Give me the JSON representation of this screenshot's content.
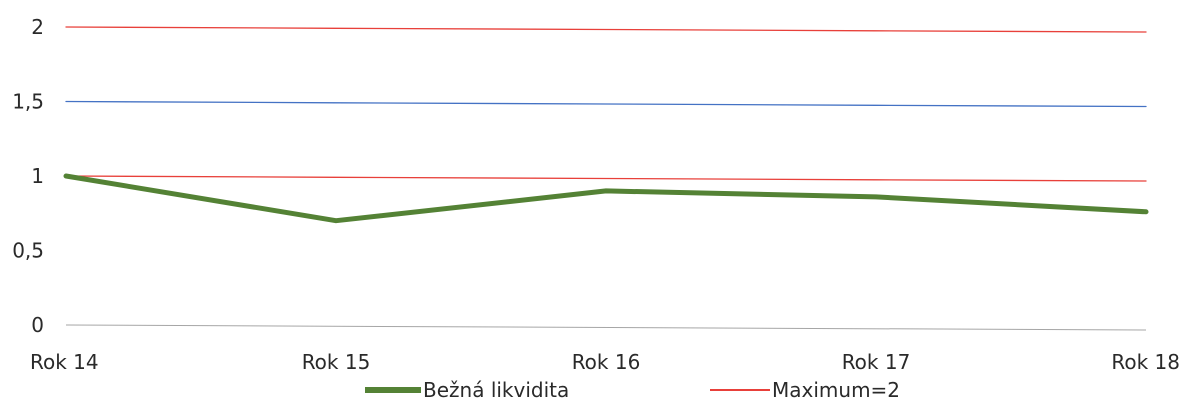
{
  "chart_data": {
    "type": "line",
    "categories": [
      "Rok 14",
      "Rok 15",
      "Rok 16",
      "Rok 17",
      "Rok 18"
    ],
    "y_ticks": [
      "0",
      "0,5",
      "1",
      "1,5",
      "2"
    ],
    "y_tick_values": [
      0,
      0.5,
      1,
      1.5,
      2
    ],
    "ylim": [
      0,
      2
    ],
    "series": [
      {
        "name": "Bežná likvidita",
        "color": "#548235",
        "values": [
          1.0,
          0.7,
          0.9,
          0.86,
          0.76
        ]
      },
      {
        "name": "Maximum=2",
        "color": "#e8403a",
        "values": [
          2,
          2,
          2,
          2,
          2
        ]
      },
      {
        "color": "#4472c4",
        "values": [
          1.5,
          1.5,
          1.5,
          1.5,
          1.5
        ]
      },
      {
        "color": "#e8403a",
        "values": [
          1,
          1,
          1,
          1,
          1
        ]
      }
    ],
    "baseline_color": "#a6a6a6",
    "legend": {
      "position": "bottom",
      "items": [
        "Bežná likvidita",
        "Maximum=2"
      ]
    },
    "title": "",
    "xlabel": "",
    "ylabel": "",
    "grid": false
  }
}
